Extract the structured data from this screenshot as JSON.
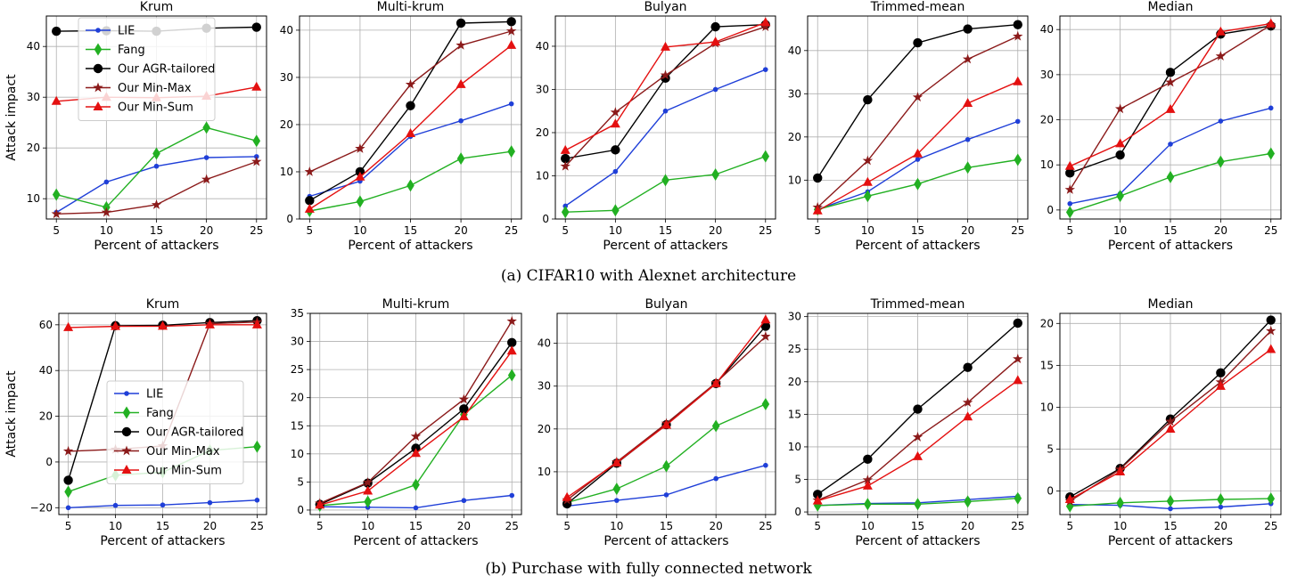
{
  "figure": {
    "caption_a": "(a) CIFAR10 with Alexnet architecture",
    "caption_b": "(b) Purchase with fully connected network"
  },
  "colors": {
    "LIE": "#1f3fd8",
    "Fang": "#22b022",
    "Our AGR-tailored": "#000000",
    "Our Min-Max": "#8b1a1a",
    "Our Min-Sum": "#e41010"
  },
  "chart_data": [
    {
      "type": "line",
      "title": "Krum",
      "xlabel": "Percent of attackers",
      "ylabel": "Attack impact",
      "x": [
        5,
        10,
        15,
        20,
        25
      ],
      "xlim": [
        4,
        26
      ],
      "ylim": [
        6,
        46
      ],
      "yticks": [
        10,
        20,
        30,
        40
      ],
      "grid": true,
      "legend": "upper-left",
      "series": [
        {
          "name": "LIE",
          "values": [
            7.3,
            13.3,
            16.4,
            18.1,
            18.3
          ]
        },
        {
          "name": "Fang",
          "values": [
            10.8,
            8.3,
            18.9,
            24.0,
            21.4
          ]
        },
        {
          "name": "Our AGR-tailored",
          "values": [
            43.0,
            43.1,
            43.0,
            43.6,
            43.8
          ]
        },
        {
          "name": "Our Min-Max",
          "values": [
            7.0,
            7.3,
            8.8,
            13.8,
            17.3
          ]
        },
        {
          "name": "Our Min-Sum",
          "values": [
            29.2,
            30.0,
            29.9,
            30.2,
            32.0
          ]
        }
      ]
    },
    {
      "type": "line",
      "title": "Multi-krum",
      "xlabel": "Percent of attackers",
      "ylabel": "",
      "x": [
        5,
        10,
        15,
        20,
        25
      ],
      "xlim": [
        4,
        26
      ],
      "ylim": [
        0,
        43
      ],
      "yticks": [
        0,
        10,
        20,
        30,
        40
      ],
      "grid": true,
      "legend": "",
      "series": [
        {
          "name": "LIE",
          "values": [
            4.8,
            8.0,
            17.5,
            20.8,
            24.4
          ]
        },
        {
          "name": "Fang",
          "values": [
            1.7,
            3.7,
            7.1,
            12.8,
            14.3
          ]
        },
        {
          "name": "Our AGR-tailored",
          "values": [
            3.9,
            10.0,
            24.0,
            41.5,
            41.8
          ]
        },
        {
          "name": "Our Min-Max",
          "values": [
            10.0,
            14.9,
            28.5,
            36.8,
            39.8
          ]
        },
        {
          "name": "Our Min-Sum",
          "values": [
            2.1,
            8.9,
            18.1,
            28.5,
            36.8
          ]
        }
      ]
    },
    {
      "type": "line",
      "title": "Bulyan",
      "xlabel": "Percent of attackers",
      "ylabel": "",
      "x": [
        5,
        10,
        15,
        20,
        25
      ],
      "xlim": [
        4,
        26
      ],
      "ylim": [
        0,
        47
      ],
      "yticks": [
        0,
        10,
        20,
        30,
        40
      ],
      "grid": true,
      "legend": "",
      "series": [
        {
          "name": "LIE",
          "values": [
            3.0,
            11.0,
            25.0,
            30.0,
            34.6
          ]
        },
        {
          "name": "Fang",
          "values": [
            1.6,
            2.0,
            9.0,
            10.3,
            14.5
          ]
        },
        {
          "name": "Our AGR-tailored",
          "values": [
            14.0,
            16.0,
            32.6,
            44.5,
            45.0
          ]
        },
        {
          "name": "Our Min-Max",
          "values": [
            12.2,
            24.7,
            33.3,
            40.7,
            44.5
          ]
        },
        {
          "name": "Our Min-Sum",
          "values": [
            15.9,
            22.0,
            39.8,
            41.0,
            45.5
          ]
        }
      ]
    },
    {
      "type": "line",
      "title": "Trimmed-mean",
      "xlabel": "Percent of attackers",
      "ylabel": "",
      "x": [
        5,
        10,
        15,
        20,
        25
      ],
      "xlim": [
        4,
        26
      ],
      "ylim": [
        1,
        48
      ],
      "yticks": [
        10,
        20,
        30,
        40
      ],
      "grid": true,
      "legend": "",
      "series": [
        {
          "name": "LIE",
          "values": [
            3.2,
            7.3,
            14.8,
            19.4,
            23.6
          ]
        },
        {
          "name": "Fang",
          "values": [
            3.2,
            6.3,
            9.1,
            12.9,
            14.7
          ]
        },
        {
          "name": "Our AGR-tailored",
          "values": [
            10.5,
            28.6,
            41.8,
            45.0,
            46.0
          ]
        },
        {
          "name": "Our Min-Max",
          "values": [
            3.7,
            14.5,
            29.2,
            38.0,
            43.3
          ]
        },
        {
          "name": "Our Min-Sum",
          "values": [
            2.9,
            9.5,
            16.1,
            27.8,
            32.8
          ]
        }
      ]
    },
    {
      "type": "line",
      "title": "Median",
      "xlabel": "Percent of attackers",
      "ylabel": "",
      "x": [
        5,
        10,
        15,
        20,
        25
      ],
      "xlim": [
        4,
        26
      ],
      "ylim": [
        -2,
        43
      ],
      "yticks": [
        0,
        10,
        20,
        30,
        40
      ],
      "grid": true,
      "legend": "",
      "series": [
        {
          "name": "LIE",
          "values": [
            1.4,
            3.6,
            14.6,
            19.7,
            22.6
          ]
        },
        {
          "name": "Fang",
          "values": [
            -0.5,
            3.1,
            7.3,
            10.7,
            12.5
          ]
        },
        {
          "name": "Our AGR-tailored",
          "values": [
            8.2,
            12.2,
            30.5,
            39.0,
            40.8
          ]
        },
        {
          "name": "Our Min-Max",
          "values": [
            4.5,
            22.4,
            28.3,
            34.1,
            41.0
          ]
        },
        {
          "name": "Our Min-Sum",
          "values": [
            9.7,
            14.7,
            22.3,
            39.5,
            41.3
          ]
        }
      ]
    },
    {
      "type": "line",
      "title": "Krum",
      "xlabel": "Percent of attackers",
      "ylabel": "Attack impact",
      "x": [
        5,
        10,
        15,
        20,
        25
      ],
      "xlim": [
        4,
        26
      ],
      "ylim": [
        -23,
        65
      ],
      "yticks": [
        -20,
        0,
        20,
        40,
        60
      ],
      "grid": true,
      "legend": "center",
      "series": [
        {
          "name": "LIE",
          "values": [
            -20.0,
            -19.0,
            -18.8,
            -17.8,
            -16.7
          ]
        },
        {
          "name": "Fang",
          "values": [
            -13.0,
            -5.8,
            -4.5,
            5.0,
            6.7
          ]
        },
        {
          "name": "Our AGR-tailored",
          "values": [
            -8.0,
            59.6,
            59.8,
            61.0,
            61.8
          ]
        },
        {
          "name": "Our Min-Max",
          "values": [
            4.7,
            5.5,
            7.0,
            60.5,
            61.2
          ]
        },
        {
          "name": "Our Min-Sum",
          "values": [
            58.8,
            59.3,
            59.4,
            60.0,
            60.0
          ]
        }
      ]
    },
    {
      "type": "line",
      "title": "Multi-krum",
      "xlabel": "Percent of attackers",
      "ylabel": "",
      "x": [
        5,
        10,
        15,
        20,
        25
      ],
      "xlim": [
        4,
        26
      ],
      "ylim": [
        -0.8,
        35
      ],
      "yticks": [
        0,
        5,
        10,
        15,
        20,
        25,
        30,
        35
      ],
      "grid": true,
      "legend": "",
      "series": [
        {
          "name": "LIE",
          "values": [
            0.6,
            0.5,
            0.4,
            1.7,
            2.6
          ]
        },
        {
          "name": "Fang",
          "values": [
            0.8,
            1.5,
            4.5,
            17.0,
            24.0
          ]
        },
        {
          "name": "Our AGR-tailored",
          "values": [
            1.0,
            4.8,
            11.0,
            18.0,
            29.8
          ]
        },
        {
          "name": "Our Min-Max",
          "values": [
            1.2,
            4.9,
            13.1,
            19.7,
            33.6
          ]
        },
        {
          "name": "Our Min-Sum",
          "values": [
            0.9,
            3.4,
            10.1,
            16.6,
            28.3
          ]
        }
      ]
    },
    {
      "type": "line",
      "title": "Bulyan",
      "xlabel": "Percent of attackers",
      "ylabel": "",
      "x": [
        5,
        10,
        15,
        20,
        25
      ],
      "xlim": [
        4,
        26
      ],
      "ylim": [
        0,
        47
      ],
      "yticks": [
        10,
        20,
        30,
        40
      ],
      "grid": true,
      "legend": "",
      "series": [
        {
          "name": "LIE",
          "values": [
            2.0,
            3.3,
            4.6,
            8.4,
            11.5
          ]
        },
        {
          "name": "Fang",
          "values": [
            2.8,
            6.0,
            11.3,
            20.7,
            25.8
          ]
        },
        {
          "name": "Our AGR-tailored",
          "values": [
            2.5,
            12.0,
            21.0,
            30.6,
            44.0
          ]
        },
        {
          "name": "Our Min-Max",
          "values": [
            3.4,
            12.3,
            21.3,
            30.8,
            41.6
          ]
        },
        {
          "name": "Our Min-Sum",
          "values": [
            4.0,
            12.1,
            20.9,
            30.6,
            45.5
          ]
        }
      ]
    },
    {
      "type": "line",
      "title": "Trimmed-mean",
      "xlabel": "Percent of attackers",
      "ylabel": "",
      "x": [
        5,
        10,
        15,
        20,
        25
      ],
      "xlim": [
        4,
        26
      ],
      "ylim": [
        -0.4,
        30.5
      ],
      "yticks": [
        0,
        5,
        10,
        15,
        20,
        25,
        30
      ],
      "grid": true,
      "legend": "",
      "series": [
        {
          "name": "LIE",
          "values": [
            1.0,
            1.3,
            1.4,
            1.9,
            2.4
          ]
        },
        {
          "name": "Fang",
          "values": [
            1.0,
            1.2,
            1.2,
            1.6,
            2.1
          ]
        },
        {
          "name": "Our AGR-tailored",
          "values": [
            2.7,
            8.1,
            15.8,
            22.2,
            29.0
          ]
        },
        {
          "name": "Our Min-Max",
          "values": [
            1.8,
            4.9,
            11.5,
            16.8,
            23.5
          ]
        },
        {
          "name": "Our Min-Sum",
          "values": [
            1.7,
            4.0,
            8.5,
            14.6,
            20.2
          ]
        }
      ]
    },
    {
      "type": "line",
      "title": "Median",
      "xlabel": "Percent of attackers",
      "ylabel": "",
      "x": [
        5,
        10,
        15,
        20,
        25
      ],
      "xlim": [
        4,
        26
      ],
      "ylim": [
        -2.8,
        21.2
      ],
      "yticks": [
        0,
        5,
        10,
        15,
        20
      ],
      "grid": true,
      "legend": "",
      "series": [
        {
          "name": "LIE",
          "values": [
            -1.6,
            -1.7,
            -2.1,
            -1.9,
            -1.5
          ]
        },
        {
          "name": "Fang",
          "values": [
            -1.8,
            -1.4,
            -1.2,
            -1.0,
            -0.9
          ]
        },
        {
          "name": "Our AGR-tailored",
          "values": [
            -0.7,
            2.7,
            8.6,
            14.1,
            20.4
          ]
        },
        {
          "name": "Our Min-Max",
          "values": [
            -1.2,
            2.6,
            8.3,
            13.0,
            19.1
          ]
        },
        {
          "name": "Our Min-Sum",
          "values": [
            -1.0,
            2.3,
            7.4,
            12.5,
            16.9
          ]
        }
      ]
    }
  ]
}
